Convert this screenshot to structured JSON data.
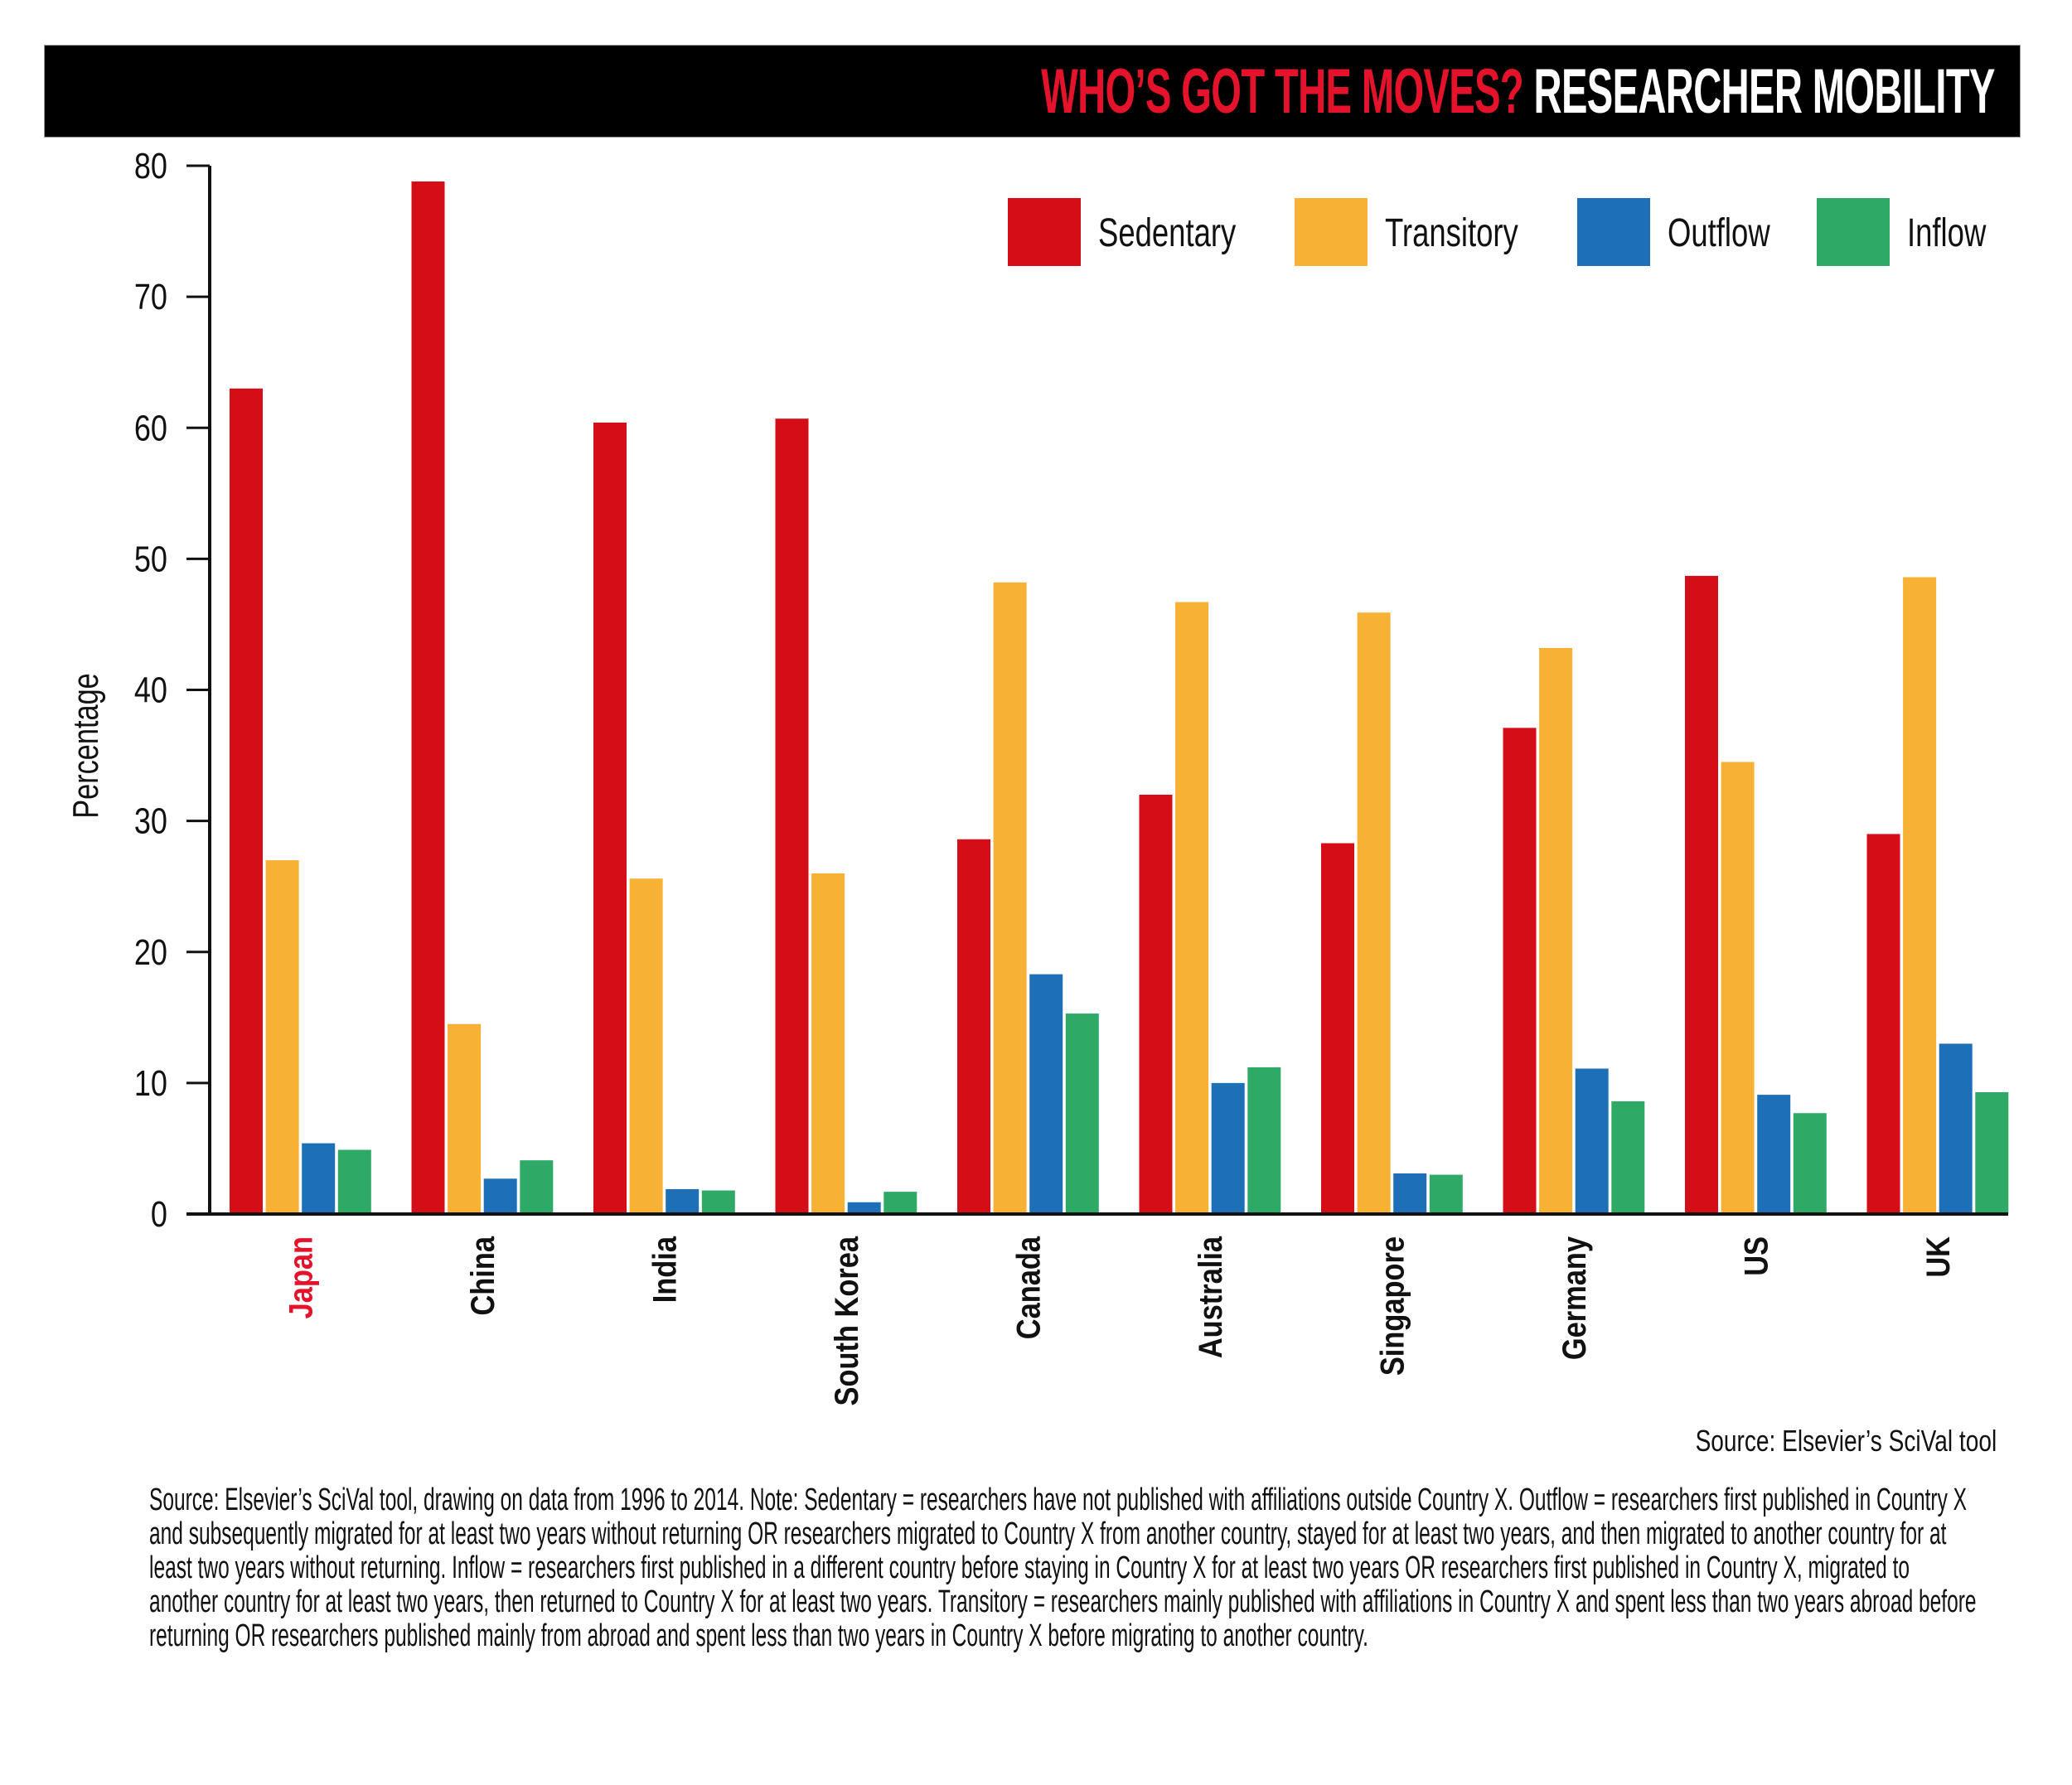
{
  "title": {
    "highlight": "WHO’S GOT THE MOVES?",
    "main": "RESEARCHER MOBILITY"
  },
  "colors": {
    "sedentary": "#D50D16",
    "transitory": "#F7B134",
    "outflow": "#1D6FB8",
    "inflow": "#2EAA66",
    "highlight_label": "#E4122A"
  },
  "source_short": "Source: Elsevier’s SciVal tool",
  "note": "Source: Elsevier’s SciVal tool, drawing on data from 1996 to 2014. Note: Sedentary = researchers have not published with affiliations outside Country X. Outflow = researchers first published in Country X and subsequently migrated for at least two years without returning OR researchers migrated to Country X from another country, stayed for at least two years, and then migrated to another country for at least two years without returning. Inflow = researchers first published in a different country before staying in Country X for at least two years OR researchers first published in Country X, migrated to another country for at least two years, then returned to Country X for at least two years. Transitory = researchers mainly published with affiliations in Country X and spent less than two years abroad before returning OR researchers published mainly from abroad and spent less than two years in Country X before migrating to another country.",
  "chart_data": {
    "type": "bar",
    "title": "WHO’S GOT THE MOVES? RESEARCHER MOBILITY",
    "xlabel": "",
    "ylabel": "Percentage",
    "ylim": [
      0,
      80
    ],
    "yticks": [
      "0",
      "10",
      "20",
      "30",
      "40",
      "50",
      "60",
      "70",
      "80"
    ],
    "grid": false,
    "legend_position": "top-right",
    "highlighted_category": "Japan",
    "categories": [
      "Japan",
      "China",
      "India",
      "South Korea",
      "Canada",
      "Australia",
      "Singapore",
      "Germany",
      "US",
      "UK"
    ],
    "series": [
      {
        "name": "Sedentary",
        "color": "#D50D16",
        "values": [
          63.0,
          78.8,
          60.4,
          60.7,
          28.6,
          32.0,
          28.3,
          37.1,
          48.7,
          29.0
        ]
      },
      {
        "name": "Transitory",
        "color": "#F7B134",
        "values": [
          27.0,
          14.5,
          25.6,
          26.0,
          48.2,
          46.7,
          45.9,
          43.2,
          34.5,
          48.6
        ]
      },
      {
        "name": "Outflow",
        "color": "#1D6FB8",
        "values": [
          5.4,
          2.7,
          1.9,
          0.9,
          18.3,
          10.0,
          3.1,
          11.1,
          9.1,
          13.0
        ]
      },
      {
        "name": "Inflow",
        "color": "#2EAA66",
        "values": [
          4.9,
          4.1,
          1.8,
          1.7,
          15.3,
          11.2,
          3.0,
          8.6,
          7.7,
          9.3
        ]
      }
    ]
  }
}
